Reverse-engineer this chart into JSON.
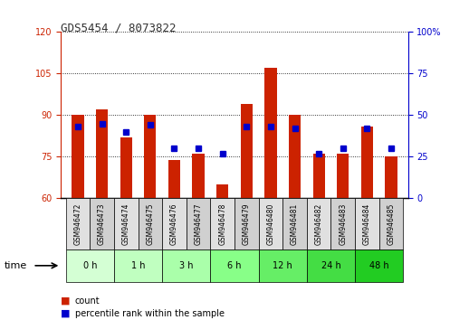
{
  "title": "GDS5454 / 8073822",
  "samples": [
    "GSM946472",
    "GSM946473",
    "GSM946474",
    "GSM946475",
    "GSM946476",
    "GSM946477",
    "GSM946478",
    "GSM946479",
    "GSM946480",
    "GSM946481",
    "GSM946482",
    "GSM946483",
    "GSM946484",
    "GSM946485"
  ],
  "count_values": [
    90,
    92,
    82,
    90,
    74,
    76,
    65,
    94,
    107,
    90,
    76,
    76,
    86,
    75
  ],
  "percentile_values": [
    43,
    45,
    40,
    44,
    30,
    30,
    27,
    43,
    43,
    42,
    27,
    30,
    42,
    30
  ],
  "time_groups": [
    {
      "label": "0 h",
      "start": 0,
      "end": 2,
      "color": "#ccffcc"
    },
    {
      "label": "1 h",
      "start": 2,
      "end": 4,
      "color": "#ccffcc"
    },
    {
      "label": "3 h",
      "start": 4,
      "end": 6,
      "color": "#ccffcc"
    },
    {
      "label": "6 h",
      "start": 6,
      "end": 8,
      "color": "#99ff99"
    },
    {
      "label": "12 h",
      "start": 8,
      "end": 10,
      "color": "#99ff99"
    },
    {
      "label": "24 h",
      "start": 10,
      "end": 12,
      "color": "#66ee66"
    },
    {
      "label": "48 h",
      "start": 12,
      "end": 14,
      "color": "#33dd33"
    }
  ],
  "ylim_left": [
    60,
    120
  ],
  "ylim_right": [
    0,
    100
  ],
  "yticks_left": [
    60,
    75,
    90,
    105,
    120
  ],
  "yticks_right": [
    0,
    25,
    50,
    75,
    100
  ],
  "bar_color": "#cc2200",
  "dot_color": "#0000cc",
  "bar_bottom": 60,
  "right_axis_label": "%",
  "legend_count": "count",
  "legend_pct": "percentile rank within the sample",
  "title_color": "#333333",
  "left_tick_color": "#cc2200",
  "right_tick_color": "#0000cc",
  "background_color": "#ffffff",
  "plot_bg_color": "#ffffff"
}
